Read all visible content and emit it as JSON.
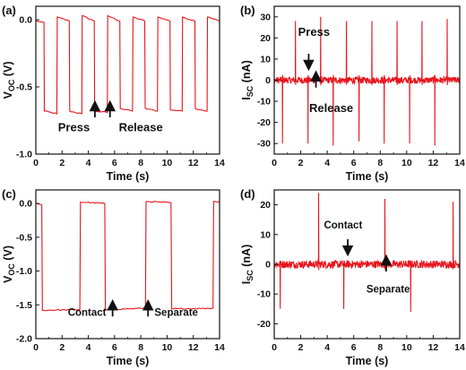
{
  "chart_data": [
    {
      "panel": "(a)",
      "type": "line",
      "xlabel": "Time (s)",
      "ylabel_main": "V",
      "ylabel_sub": "OC",
      "ylabel_unit": "(V)",
      "xlim": [
        0,
        14
      ],
      "ylim": [
        -1.0,
        0.1
      ],
      "xticks": [
        0,
        2,
        4,
        6,
        8,
        10,
        12,
        14
      ],
      "xtick_labels": [
        "0",
        "2",
        "4",
        "6",
        "8",
        "10",
        "12",
        "14"
      ],
      "yticks": [
        0.0,
        -0.5,
        -1.0
      ],
      "ytick_labels": [
        "0.0",
        "-0.5",
        "-1.0"
      ],
      "color": "#e8141c",
      "series": [
        {
          "x": [
            0.0,
            0.62,
            0.65,
            1.6,
            1.63,
            2.55,
            2.58,
            3.5,
            3.53,
            4.45,
            4.48,
            5.45,
            5.48,
            6.4,
            6.43,
            7.37,
            7.4,
            8.3,
            8.33,
            9.27,
            9.3,
            10.22,
            10.25,
            11.15,
            11.18,
            12.12,
            12.15,
            13.05,
            13.08,
            14.0
          ],
          "y": [
            -0.01,
            -0.02,
            -0.68,
            -0.7,
            0.02,
            -0.01,
            -0.68,
            -0.7,
            0.03,
            -0.01,
            -0.68,
            -0.69,
            0.03,
            -0.01,
            -0.66,
            -0.68,
            0.02,
            -0.01,
            -0.66,
            -0.68,
            0.02,
            -0.01,
            -0.67,
            -0.68,
            0.02,
            -0.01,
            -0.66,
            -0.68,
            0.02,
            -0.01
          ]
        }
      ],
      "annotations": [
        {
          "text": "Press",
          "x": 4.5,
          "y": -0.64,
          "font_size": 13,
          "text_x": 2.9,
          "text_y": -0.83,
          "arrow": "up"
        },
        {
          "text": "Release",
          "x": 5.65,
          "y": -0.64,
          "font_size": 13,
          "text_x": 8.0,
          "text_y": -0.83,
          "arrow": "up"
        }
      ]
    },
    {
      "panel": "(b)",
      "type": "line",
      "xlabel": "Time (s)",
      "ylabel_main": "I",
      "ylabel_sub": "SC",
      "ylabel_unit": "(nA)",
      "xlim": [
        0,
        14
      ],
      "ylim": [
        -35,
        35
      ],
      "xticks": [
        0,
        2,
        4,
        6,
        8,
        10,
        12,
        14
      ],
      "xtick_labels": [
        "0",
        "2",
        "4",
        "6",
        "8",
        "10",
        "12",
        "14"
      ],
      "yticks": [
        30,
        20,
        10,
        0,
        -10,
        -20,
        -30
      ],
      "ytick_labels": [
        "30",
        "20",
        "10",
        "0",
        "-10",
        "-20",
        "-30"
      ],
      "color": "#e8141c",
      "noise_amplitude": 1.6,
      "spikes": [
        {
          "x": 0.62,
          "y": -30
        },
        {
          "x": 1.6,
          "y": 28
        },
        {
          "x": 2.55,
          "y": -30
        },
        {
          "x": 3.5,
          "y": 30
        },
        {
          "x": 4.45,
          "y": -31
        },
        {
          "x": 5.45,
          "y": 28
        },
        {
          "x": 6.4,
          "y": -29
        },
        {
          "x": 7.37,
          "y": 28
        },
        {
          "x": 8.3,
          "y": -30
        },
        {
          "x": 9.27,
          "y": 28
        },
        {
          "x": 10.22,
          "y": -30
        },
        {
          "x": 11.15,
          "y": 28
        },
        {
          "x": 12.12,
          "y": -31
        },
        {
          "x": 13.05,
          "y": 29
        }
      ],
      "annotations": [
        {
          "text": "Press",
          "x": 2.6,
          "y": 7,
          "font_size": 13,
          "text_x": 3.0,
          "text_y": 21,
          "arrow": "down"
        },
        {
          "text": "Release",
          "x": 3.15,
          "y": 2,
          "font_size": 13,
          "text_x": 4.3,
          "text_y": -15,
          "arrow": "up"
        }
      ]
    },
    {
      "panel": "(c)",
      "type": "line",
      "xlabel": "Time (s)",
      "ylabel_main": "V",
      "ylabel_sub": "OC",
      "ylabel_unit": "(V)",
      "xlim": [
        0,
        14
      ],
      "ylim": [
        -2.0,
        0.2
      ],
      "xticks": [
        0,
        2,
        4,
        6,
        8,
        10,
        12,
        14
      ],
      "xtick_labels": [
        "0",
        "2",
        "4",
        "6",
        "8",
        "10",
        "12",
        "14"
      ],
      "yticks": [
        0.0,
        -0.5,
        -1.0,
        -1.5,
        -2.0
      ],
      "ytick_labels": [
        "0.0",
        "-0.5",
        "-1.0",
        "-1.5",
        "-2.0"
      ],
      "color": "#e8141c",
      "series": [
        {
          "x": [
            0.0,
            0.45,
            0.5,
            3.35,
            3.4,
            5.25,
            5.3,
            8.35,
            8.4,
            10.3,
            10.35,
            13.5,
            13.55,
            14.0
          ],
          "y": [
            0.0,
            -0.02,
            -1.58,
            -1.57,
            0.02,
            0.0,
            -1.57,
            -1.55,
            0.03,
            0.01,
            -1.56,
            -1.55,
            0.03,
            0.02
          ]
        }
      ],
      "annotations": [
        {
          "text": "Contact",
          "x": 5.85,
          "y": -1.5,
          "font_size": 11.5,
          "text_x": 3.9,
          "text_y": -1.66,
          "arrow": "up"
        },
        {
          "text": "Separate",
          "x": 8.55,
          "y": -1.5,
          "font_size": 11.5,
          "text_x": 10.7,
          "text_y": -1.66,
          "arrow": "up"
        }
      ]
    },
    {
      "panel": "(d)",
      "type": "line",
      "xlabel": "Time (s)",
      "ylabel_main": "I",
      "ylabel_sub": "SC",
      "ylabel_unit": "(nA)",
      "xlim": [
        0,
        14
      ],
      "ylim": [
        -25,
        25
      ],
      "xticks": [
        0,
        2,
        4,
        6,
        8,
        10,
        12,
        14
      ],
      "xtick_labels": [
        "0",
        "2",
        "4",
        "6",
        "8",
        "10",
        "12",
        "14"
      ],
      "yticks": [
        20,
        10,
        0,
        -10,
        -20
      ],
      "ytick_labels": [
        "20",
        "10",
        "0",
        "-10",
        "-20"
      ],
      "color": "#e8141c",
      "noise_amplitude": 1.3,
      "spikes": [
        {
          "x": 0.45,
          "y": -15
        },
        {
          "x": 3.35,
          "y": 24
        },
        {
          "x": 5.25,
          "y": -15
        },
        {
          "x": 8.35,
          "y": 22
        },
        {
          "x": 10.3,
          "y": -16
        },
        {
          "x": 13.5,
          "y": 21
        }
      ],
      "annotations": [
        {
          "text": "Contact",
          "x": 5.55,
          "y": 4.5,
          "font_size": 11.5,
          "text_x": 5.2,
          "text_y": 12,
          "arrow": "down"
        },
        {
          "text": "Separate",
          "x": 8.45,
          "y": 1.5,
          "font_size": 11.5,
          "text_x": 8.6,
          "text_y": -9.5,
          "arrow": "up"
        }
      ]
    }
  ]
}
